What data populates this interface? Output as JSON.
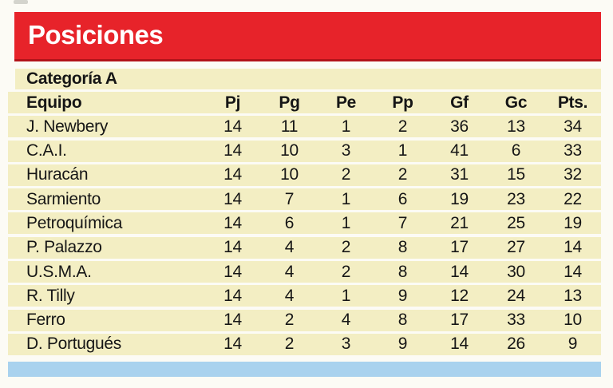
{
  "header": {
    "title": "Posiciones"
  },
  "category_label": "Categoría A",
  "table": {
    "columns": [
      "Equipo",
      "Pj",
      "Pg",
      "Pe",
      "Pp",
      "Gf",
      "Gc",
      "Pts."
    ],
    "rows": [
      [
        "J. Newbery",
        14,
        11,
        1,
        2,
        36,
        13,
        34
      ],
      [
        "C.A.I.",
        14,
        10,
        3,
        1,
        41,
        6,
        33
      ],
      [
        "Huracán",
        14,
        10,
        2,
        2,
        31,
        15,
        32
      ],
      [
        "Sarmiento",
        14,
        7,
        1,
        6,
        19,
        23,
        22
      ],
      [
        "Petroquímica",
        14,
        6,
        1,
        7,
        21,
        25,
        19
      ],
      [
        "P. Palazzo",
        14,
        4,
        2,
        8,
        17,
        27,
        14
      ],
      [
        "U.S.M.A.",
        14,
        4,
        2,
        8,
        14,
        30,
        14
      ],
      [
        "R. Tilly",
        14,
        4,
        1,
        9,
        12,
        24,
        13
      ],
      [
        "Ferro",
        14,
        2,
        4,
        8,
        17,
        33,
        10
      ],
      [
        "D. Portugués",
        14,
        2,
        3,
        9,
        14,
        26,
        9
      ]
    ]
  },
  "colors": {
    "accent_red": "#e7232a",
    "accent_red_dark": "#b2141a",
    "row_cream": "#f3eec3",
    "page_bg": "#fcfbf5",
    "bottom_bar_blue": "#a9d2ee",
    "text_dark": "#161616",
    "title_text": "#ffffff"
  }
}
